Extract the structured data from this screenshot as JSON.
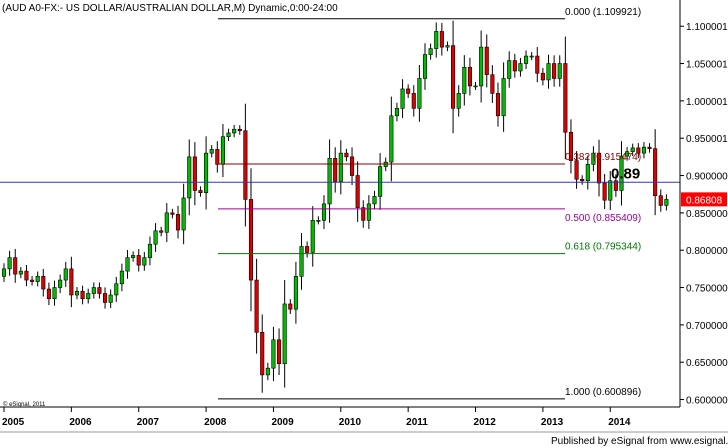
{
  "chart_data": {
    "type": "candlestick",
    "title": "(AUD A0-FX:- US DOLLAR/AUSTRALIAN DOLLAR,M) Dynamic,0:00-24:00",
    "x_ticks": [
      "2005",
      "2006",
      "2007",
      "2008",
      "2009",
      "2010",
      "2011",
      "2012",
      "2013",
      "2014"
    ],
    "y_ticks": [
      "0.600000",
      "0.650000",
      "0.700000",
      "0.750000",
      "0.800000",
      "0.850000",
      "0.900000",
      "0.950001",
      "1.000001",
      "1.050001",
      "1.100001"
    ],
    "ylim": [
      0.59,
      1.115
    ],
    "current_price": {
      "label": "0.86808",
      "value": 0.86808,
      "color": "#ff0000"
    },
    "horizontal_line": {
      "value": 0.891,
      "label": "0.89",
      "color": "#3333cc"
    },
    "fib_levels": [
      {
        "label": "0.000 (1.109921)",
        "value": 1.109921,
        "color": "#000000"
      },
      {
        "label": "0.382 (0.915474)",
        "value": 0.915474,
        "color": "#880000"
      },
      {
        "label": "0.500 (0.855409)",
        "value": 0.855409,
        "color": "#990099"
      },
      {
        "label": "0.618 (0.795344)",
        "value": 0.795344,
        "color": "#007700"
      },
      {
        "label": "1.000 (0.600896)",
        "value": 0.600896,
        "color": "#000000"
      }
    ],
    "closes": [
      0.775,
      0.79,
      0.768,
      0.772,
      0.76,
      0.758,
      0.765,
      0.748,
      0.735,
      0.75,
      0.76,
      0.775,
      0.74,
      0.745,
      0.735,
      0.742,
      0.75,
      0.742,
      0.73,
      0.74,
      0.755,
      0.772,
      0.79,
      0.793,
      0.78,
      0.79,
      0.808,
      0.826,
      0.824,
      0.85,
      0.848,
      0.827,
      0.87,
      0.925,
      0.88,
      0.877,
      0.93,
      0.935,
      0.915,
      0.952,
      0.957,
      0.962,
      0.96,
      0.868,
      0.76,
      0.69,
      0.633,
      0.642,
      0.68,
      0.648,
      0.728,
      0.721,
      0.765,
      0.805,
      0.797,
      0.84,
      0.84,
      0.862,
      0.923,
      0.892,
      0.93,
      0.925,
      0.9,
      0.857,
      0.84,
      0.862,
      0.872,
      0.912,
      0.918,
      0.98,
      0.99,
      1.016,
      1.01,
      0.99,
      1.03,
      1.062,
      1.07,
      1.093,
      1.072,
      1.074,
      0.99,
      1.01,
      1.045,
      1.02,
      1.02,
      1.072,
      1.035,
      1.01,
      0.98,
      1.03,
      1.054,
      1.04,
      1.05,
      1.06,
      1.06,
      1.037,
      1.028,
      1.05,
      1.03,
      1.05,
      0.958,
      0.92,
      0.895,
      0.893,
      0.915,
      0.93,
      0.89,
      0.867,
      0.893,
      0.88,
      0.926,
      0.932,
      0.937,
      0.93,
      0.938,
      0.936,
      0.873,
      0.86,
      0.868
    ],
    "bullish_color": "#00bb00",
    "bearish_color": "#dd0000",
    "grid": false
  },
  "copyright": "© eSignal, 2011",
  "footer": "Published by eSignal from www.esignal.com"
}
